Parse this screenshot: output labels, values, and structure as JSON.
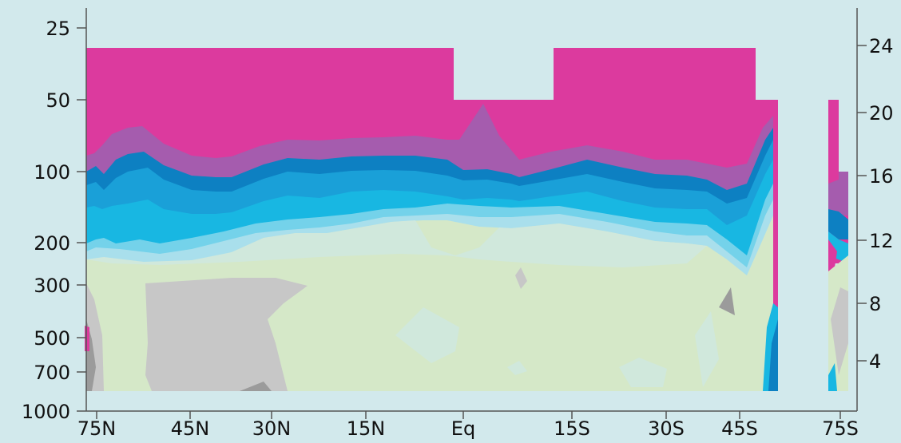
{
  "chart_data": {
    "type": "heatmap",
    "title": "",
    "xlabel": "",
    "ylabel": "",
    "x_ticks": [
      "75N",
      "45N",
      "30N",
      "15N",
      "Eq",
      "15S",
      "30S",
      "45S",
      "75S"
    ],
    "y_left_ticks": [
      "25",
      "50",
      "100",
      "200",
      "300",
      "500",
      "700",
      "1000"
    ],
    "y_right_ticks": [
      "24",
      "20",
      "16",
      "12",
      "8",
      "4"
    ],
    "y_left_scale": "log",
    "y_left_range": [
      1000,
      20
    ],
    "y_right_range": [
      2,
      26
    ],
    "colors": {
      "background": "#d2e9ec",
      "magenta": "#dc3a9e",
      "purple": "#a55cae",
      "dark_blue": "#0d80c2",
      "mid_blue": "#1aa0d8",
      "cyan": "#18b7e2",
      "light_cyan": "#74d2ea",
      "pale_cyan": "#a9dfec",
      "pale_green": "#d5e8c8",
      "pale_teal": "#d0e8dc",
      "gray": "#c7c7c7",
      "dark_gray": "#9b9b9b"
    }
  }
}
